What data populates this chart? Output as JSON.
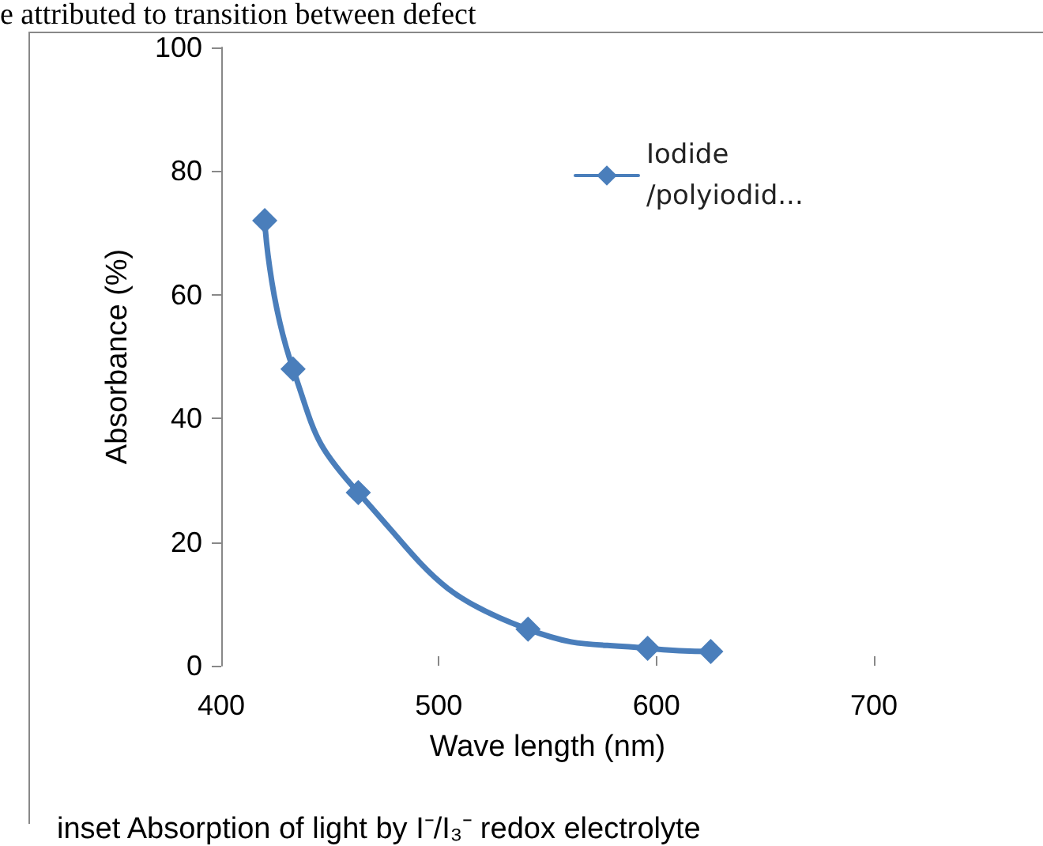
{
  "chart_data": {
    "type": "line",
    "xlabel": "Wave length (nm)",
    "ylabel": "Absorbance (%)",
    "x": [
      420,
      433,
      463,
      541,
      596,
      625
    ],
    "series": [
      {
        "name": "Iodide\n/polyiodid...",
        "color": "#4a7ebb",
        "values": [
          72,
          48,
          28,
          5.9,
          2.8,
          2.3
        ]
      }
    ],
    "xlim": [
      400,
      700
    ],
    "xticks": [
      400,
      500,
      600,
      700
    ],
    "ylim": [
      0,
      100
    ],
    "yticks": [
      0,
      20,
      40,
      60,
      80,
      100
    ],
    "grid": false,
    "legend": "top right",
    "marker": "diamond",
    "line_style": "solid",
    "annotations": [
      "e attributed to transition between defect",
      "inset    Absorption of light by I⁻/I₃⁻ redox electrolyte"
    ]
  }
}
